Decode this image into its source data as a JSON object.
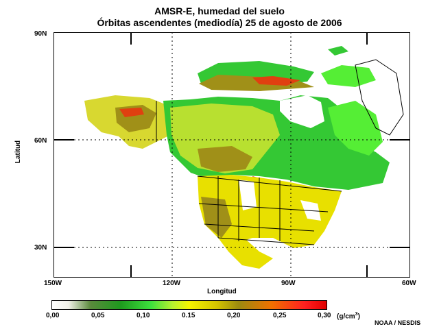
{
  "title": {
    "line1": "AMSR-E, humedad del suelo",
    "line2": "Órbitas ascendentes (mediodía)  25 de agosto de 2006"
  },
  "axes": {
    "ylabel": "Latitud",
    "xlabel": "Longitud",
    "lat_ticks": [
      "90N",
      "60N",
      "30N"
    ],
    "lon_ticks": [
      "150W",
      "120W",
      "90W",
      "60W"
    ],
    "lat_range": [
      20,
      90
    ],
    "lon_range": [
      -150,
      -60
    ]
  },
  "colorbar": {
    "ticks": [
      "0,00",
      "0,05",
      "0,10",
      "0.15",
      "0,20",
      "0,25",
      "0,30"
    ],
    "units_prefix": "(g/cm",
    "units_exp": "3",
    "units_suffix": ")",
    "colors": [
      "#ffffff",
      "#5a8a3c",
      "#1e9a1e",
      "#3de03d",
      "#f4f400",
      "#9c8a10",
      "#f07000",
      "#e00000"
    ]
  },
  "credit": "NOAA / NESDIS",
  "colors": {
    "land_dry": "#e8e000",
    "land_green": "#34c834",
    "land_bright": "#55ee35",
    "land_olive": "#a09018",
    "wet": "#e04010",
    "boundaries": "#000000"
  }
}
